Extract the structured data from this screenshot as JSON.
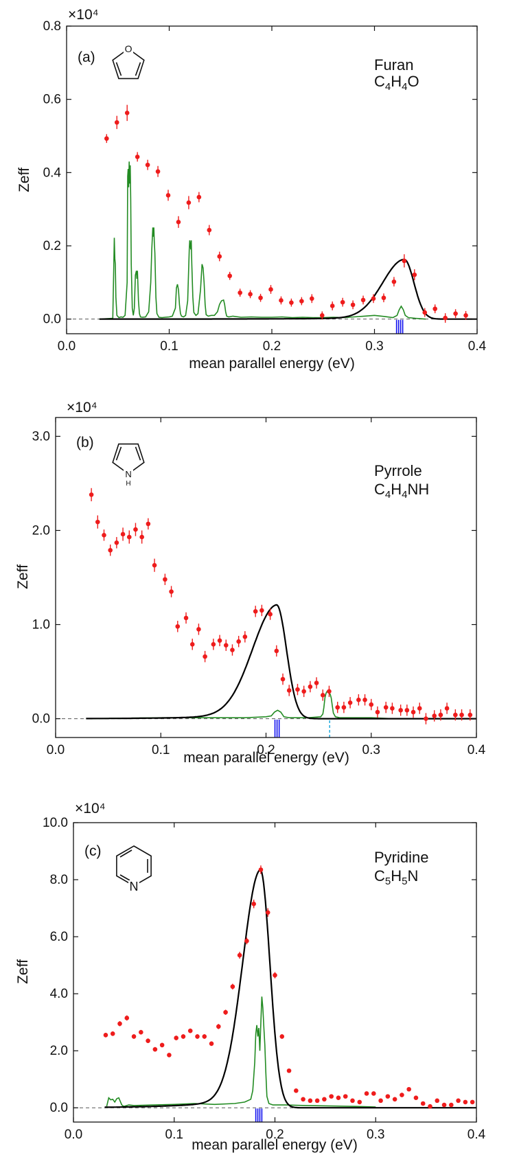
{
  "colors": {
    "data_points": "#ee1c1c",
    "fit_curve": "#000000",
    "calc_curve": "#228b22",
    "vib_mode_lines": "#1010ee",
    "dashed_mode_line": "#22aadd",
    "baseline": "#555555"
  },
  "chart_data": [
    {
      "type": "scatter",
      "panel_label": "(a)",
      "molecule": {
        "name": "Furan",
        "formula": [
          "C",
          "4",
          "H",
          "4",
          "O"
        ],
        "structure_icon": "furan-ring-icon",
        "heteroatom_label": "O"
      },
      "xlabel": "mean parallel energy (eV)",
      "ylabel": "Zeff",
      "y_multiplier": "×10⁴",
      "xlim": [
        0.0,
        0.4
      ],
      "ylim": [
        -0.04,
        0.8
      ],
      "xticks": [
        0.0,
        0.1,
        0.2,
        0.3,
        0.4
      ],
      "xtick_labels": [
        "0.0",
        "0.1",
        "0.2",
        "0.3",
        "0.4"
      ],
      "yticks": [
        0.0,
        0.2,
        0.4,
        0.6,
        0.8
      ],
      "ytick_labels": [
        "0.0",
        "0.2",
        "0.4",
        "0.6",
        "0.8"
      ],
      "grid": false,
      "series": [
        {
          "kind": "points",
          "x": [
            0.039,
            0.049,
            0.059,
            0.069,
            0.079,
            0.089,
            0.099,
            0.109,
            0.119,
            0.129,
            0.139,
            0.149,
            0.159,
            0.169,
            0.179,
            0.189,
            0.199,
            0.209,
            0.219,
            0.229,
            0.239,
            0.249,
            0.259,
            0.269,
            0.279,
            0.289,
            0.299,
            0.309,
            0.319,
            0.329,
            0.339,
            0.349,
            0.359,
            0.369,
            0.379,
            0.389
          ],
          "y": [
            0.493,
            0.537,
            0.563,
            0.443,
            0.421,
            0.403,
            0.338,
            0.265,
            0.318,
            0.333,
            0.243,
            0.171,
            0.118,
            0.072,
            0.068,
            0.058,
            0.081,
            0.051,
            0.045,
            0.049,
            0.056,
            0.01,
            0.036,
            0.046,
            0.039,
            0.052,
            0.056,
            0.058,
            0.102,
            0.159,
            0.121,
            0.018,
            0.028,
            0.003,
            0.015,
            0.01
          ],
          "yerr": [
            0.012,
            0.018,
            0.022,
            0.013,
            0.014,
            0.015,
            0.015,
            0.016,
            0.018,
            0.014,
            0.014,
            0.013,
            0.011,
            0.011,
            0.011,
            0.011,
            0.012,
            0.011,
            0.011,
            0.011,
            0.012,
            0.011,
            0.012,
            0.012,
            0.012,
            0.012,
            0.012,
            0.012,
            0.013,
            0.018,
            0.015,
            0.012,
            0.012,
            0.013,
            0.012,
            0.012
          ]
        },
        {
          "kind": "fit",
          "shape": "resonance",
          "x0": 0.329,
          "amplitude": 0.163,
          "sigma_left": 0.021,
          "sigma_right": 0.0095,
          "tail_fraction": 0.04,
          "tail_scale": 0.055,
          "x_start": 0.032,
          "x_end": 0.4
        },
        {
          "kind": "calc",
          "x": [
            0.032,
            0.045,
            0.046,
            0.0465,
            0.047,
            0.0475,
            0.048,
            0.049,
            0.051,
            0.053,
            0.055,
            0.057,
            0.059,
            0.0595,
            0.06,
            0.0605,
            0.061,
            0.0615,
            0.062,
            0.0625,
            0.063,
            0.064,
            0.065,
            0.066,
            0.067,
            0.068,
            0.0685,
            0.069,
            0.0695,
            0.07,
            0.071,
            0.072,
            0.074,
            0.077,
            0.08,
            0.082,
            0.083,
            0.084,
            0.0845,
            0.085,
            0.0855,
            0.086,
            0.087,
            0.088,
            0.09,
            0.093,
            0.096,
            0.1,
            0.103,
            0.106,
            0.107,
            0.108,
            0.109,
            0.11,
            0.111,
            0.112,
            0.114,
            0.116,
            0.118,
            0.1195,
            0.12,
            0.121,
            0.1215,
            0.122,
            0.123,
            0.124,
            0.126,
            0.128,
            0.1305,
            0.132,
            0.133,
            0.134,
            0.135,
            0.136,
            0.138,
            0.141,
            0.144,
            0.147,
            0.149,
            0.151,
            0.153,
            0.154,
            0.155,
            0.156,
            0.158,
            0.162,
            0.17,
            0.18,
            0.19,
            0.2,
            0.21,
            0.22,
            0.23,
            0.24,
            0.25,
            0.26,
            0.27,
            0.28,
            0.29,
            0.3,
            0.31,
            0.318,
            0.322,
            0.324,
            0.326,
            0.328,
            0.33,
            0.333,
            0.34,
            0.35
          ],
          "y": [
            0.0,
            0.002,
            0.15,
            0.222,
            0.165,
            0.15,
            0.06,
            0.01,
            0.004,
            0.006,
            0.005,
            0.01,
            0.1,
            0.39,
            0.41,
            0.36,
            0.43,
            0.37,
            0.42,
            0.33,
            0.15,
            0.03,
            0.01,
            0.03,
            0.12,
            0.132,
            0.11,
            0.132,
            0.095,
            0.05,
            0.015,
            0.006,
            0.005,
            0.006,
            0.02,
            0.1,
            0.19,
            0.25,
            0.225,
            0.25,
            0.21,
            0.18,
            0.06,
            0.015,
            0.005,
            0.004,
            0.005,
            0.006,
            0.008,
            0.03,
            0.085,
            0.095,
            0.08,
            0.04,
            0.015,
            0.008,
            0.006,
            0.01,
            0.05,
            0.19,
            0.215,
            0.19,
            0.215,
            0.15,
            0.06,
            0.018,
            0.01,
            0.015,
            0.08,
            0.15,
            0.14,
            0.1,
            0.04,
            0.012,
            0.008,
            0.01,
            0.01,
            0.02,
            0.04,
            0.05,
            0.052,
            0.04,
            0.02,
            0.008,
            0.006,
            0.008,
            0.005,
            0.006,
            0.005,
            0.005,
            0.006,
            0.004,
            0.005,
            0.004,
            0.004,
            0.005,
            0.004,
            0.006,
            0.008,
            0.01,
            0.007,
            0.004,
            0.01,
            0.025,
            0.035,
            0.026,
            0.01,
            0.004,
            0.002,
            0.0
          ]
        }
      ],
      "vib_modes": [
        0.3215,
        0.3235,
        0.3255,
        0.3275
      ],
      "dashed_modes": []
    },
    {
      "type": "scatter",
      "panel_label": "(b)",
      "molecule": {
        "name": "Pyrrole",
        "formula": [
          "C",
          "4",
          "H",
          "4",
          "NH"
        ],
        "structure_icon": "pyrrole-ring-icon",
        "heteroatom_label": "N",
        "heteroatom_sub": "H"
      },
      "xlabel": "mean parallel energy (eV)",
      "ylabel": "Zeff",
      "y_multiplier": "×10⁴",
      "xlim": [
        0.0,
        0.4
      ],
      "ylim": [
        -0.2,
        3.2
      ],
      "xticks": [
        0.0,
        0.1,
        0.2,
        0.3,
        0.4
      ],
      "xtick_labels": [
        "0.0",
        "0.1",
        "0.2",
        "0.3",
        "0.4"
      ],
      "yticks": [
        0.0,
        1.0,
        2.0,
        3.0
      ],
      "ytick_labels": [
        "0.0",
        "1.0",
        "2.0",
        "3.0"
      ],
      "grid": false,
      "series": [
        {
          "kind": "points",
          "x": [
            0.034,
            0.04,
            0.046,
            0.052,
            0.058,
            0.064,
            0.07,
            0.076,
            0.082,
            0.088,
            0.094,
            0.104,
            0.11,
            0.116,
            0.124,
            0.13,
            0.136,
            0.142,
            0.15,
            0.156,
            0.162,
            0.168,
            0.174,
            0.18,
            0.19,
            0.196,
            0.204,
            0.21,
            0.216,
            0.222,
            0.23,
            0.236,
            0.242,
            0.248,
            0.254,
            0.26,
            0.268,
            0.274,
            0.28,
            0.288,
            0.294,
            0.3,
            0.306,
            0.314,
            0.32,
            0.328,
            0.334,
            0.34,
            0.346,
            0.352,
            0.36,
            0.366,
            0.372,
            0.38,
            0.386,
            0.394
          ],
          "y": [
            2.38,
            2.09,
            1.95,
            1.79,
            1.87,
            1.96,
            1.93,
            2.01,
            1.93,
            2.07,
            1.63,
            1.48,
            1.35,
            0.98,
            1.07,
            0.79,
            0.95,
            0.66,
            0.79,
            0.83,
            0.78,
            0.73,
            0.82,
            0.87,
            1.14,
            1.15,
            1.11,
            0.72,
            0.42,
            0.3,
            0.31,
            0.29,
            0.34,
            0.38,
            0.25,
            0.29,
            0.12,
            0.12,
            0.17,
            0.2,
            0.2,
            0.15,
            0.07,
            0.12,
            0.11,
            0.09,
            0.09,
            0.07,
            0.11,
            0.0,
            0.03,
            0.04,
            0.11,
            0.04,
            0.04,
            0.04
          ],
          "yerr": [
            0.07,
            0.07,
            0.06,
            0.06,
            0.06,
            0.07,
            0.07,
            0.07,
            0.07,
            0.06,
            0.07,
            0.06,
            0.06,
            0.06,
            0.06,
            0.06,
            0.06,
            0.06,
            0.06,
            0.06,
            0.06,
            0.06,
            0.06,
            0.06,
            0.06,
            0.06,
            0.06,
            0.06,
            0.06,
            0.06,
            0.06,
            0.06,
            0.06,
            0.06,
            0.06,
            0.06,
            0.06,
            0.06,
            0.06,
            0.06,
            0.06,
            0.06,
            0.06,
            0.06,
            0.06,
            0.06,
            0.06,
            0.06,
            0.06,
            0.06,
            0.06,
            0.06,
            0.06,
            0.06,
            0.06,
            0.06
          ]
        },
        {
          "kind": "fit",
          "shape": "resonance",
          "x0": 0.21,
          "amplitude": 1.21,
          "sigma_left": 0.023,
          "sigma_right": 0.0095,
          "tail_fraction": 0.07,
          "tail_scale": 0.045,
          "x_start": 0.029,
          "x_end": 0.4
        },
        {
          "kind": "calc",
          "x": [
            0.029,
            0.1,
            0.15,
            0.18,
            0.2,
            0.205,
            0.208,
            0.211,
            0.214,
            0.217,
            0.222,
            0.24,
            0.252,
            0.254,
            0.255,
            0.256,
            0.257,
            0.258,
            0.259,
            0.26,
            0.261,
            0.262,
            0.263,
            0.264,
            0.266,
            0.27,
            0.3,
            0.32
          ],
          "y": [
            0.0,
            0.01,
            0.01,
            0.01,
            0.02,
            0.03,
            0.07,
            0.09,
            0.07,
            0.02,
            0.01,
            0.01,
            0.02,
            0.05,
            0.12,
            0.22,
            0.27,
            0.29,
            0.28,
            0.27,
            0.26,
            0.22,
            0.14,
            0.06,
            0.02,
            0.01,
            0.01,
            0.0
          ]
        }
      ],
      "vib_modes": [
        0.2085,
        0.2105,
        0.2125
      ],
      "dashed_modes": [
        0.2605
      ]
    },
    {
      "type": "scatter",
      "panel_label": "(c)",
      "molecule": {
        "name": "Pyridine",
        "formula": [
          "C",
          "5",
          "H",
          "5",
          "N"
        ],
        "structure_icon": "pyridine-ring-icon",
        "heteroatom_label": "N"
      },
      "xlabel": "mean parallel energy (eV)",
      "ylabel": "Zeff",
      "y_multiplier": "×10⁴",
      "xlim": [
        0.0,
        0.4
      ],
      "ylim": [
        -0.5,
        10.0
      ],
      "xticks": [
        0.0,
        0.1,
        0.2,
        0.3,
        0.4
      ],
      "xtick_labels": [
        "0.0",
        "0.1",
        "0.2",
        "0.3",
        "0.4"
      ],
      "yticks": [
        0.0,
        2.0,
        4.0,
        6.0,
        8.0,
        10.0
      ],
      "ytick_labels": [
        "0.0",
        "2.0",
        "4.0",
        "6.0",
        "8.0",
        "10.0"
      ],
      "grid": false,
      "series": [
        {
          "kind": "points",
          "x": [
            0.032,
            0.039,
            0.046,
            0.053,
            0.06,
            0.067,
            0.074,
            0.081,
            0.088,
            0.095,
            0.102,
            0.109,
            0.116,
            0.123,
            0.13,
            0.137,
            0.144,
            0.151,
            0.158,
            0.165,
            0.172,
            0.179,
            0.186,
            0.193,
            0.2,
            0.207,
            0.214,
            0.221,
            0.228,
            0.235,
            0.242,
            0.249,
            0.256,
            0.263,
            0.27,
            0.277,
            0.284,
            0.291,
            0.298,
            0.305,
            0.312,
            0.319,
            0.326,
            0.333,
            0.34,
            0.347,
            0.354,
            0.361,
            0.368,
            0.375,
            0.382,
            0.389,
            0.396
          ],
          "y": [
            2.55,
            2.6,
            2.95,
            3.15,
            2.5,
            2.65,
            2.35,
            2.05,
            2.2,
            1.85,
            2.45,
            2.5,
            2.7,
            2.5,
            2.5,
            2.25,
            2.85,
            3.35,
            4.25,
            5.35,
            5.85,
            7.15,
            8.35,
            6.85,
            4.65,
            2.5,
            1.3,
            0.6,
            0.3,
            0.25,
            0.25,
            0.3,
            0.4,
            0.35,
            0.4,
            0.25,
            0.2,
            0.5,
            0.5,
            0.25,
            0.4,
            0.3,
            0.45,
            0.65,
            0.35,
            0.15,
            0.05,
            0.25,
            0.1,
            0.1,
            0.25,
            0.2,
            0.2
          ],
          "yerr": [
            0.08,
            0.08,
            0.09,
            0.09,
            0.08,
            0.08,
            0.08,
            0.08,
            0.08,
            0.07,
            0.08,
            0.08,
            0.08,
            0.08,
            0.08,
            0.08,
            0.09,
            0.09,
            0.1,
            0.12,
            0.12,
            0.15,
            0.15,
            0.15,
            0.11,
            0.08,
            0.07,
            0.07,
            0.07,
            0.07,
            0.07,
            0.07,
            0.07,
            0.07,
            0.07,
            0.07,
            0.07,
            0.07,
            0.07,
            0.07,
            0.07,
            0.07,
            0.07,
            0.07,
            0.07,
            0.07,
            0.07,
            0.07,
            0.07,
            0.07,
            0.07,
            0.07,
            0.07
          ]
        },
        {
          "kind": "fit",
          "shape": "resonance",
          "x0": 0.1855,
          "amplitude": 8.35,
          "sigma_left": 0.0175,
          "sigma_right": 0.0095,
          "tail_fraction": 0.05,
          "tail_scale": 0.05,
          "x_start": 0.031,
          "x_end": 0.4
        },
        {
          "kind": "calc",
          "x": [
            0.033,
            0.035,
            0.037,
            0.039,
            0.041,
            0.043,
            0.045,
            0.048,
            0.05,
            0.055,
            0.06,
            0.08,
            0.1,
            0.12,
            0.14,
            0.16,
            0.17,
            0.176,
            0.178,
            0.18,
            0.181,
            0.182,
            0.183,
            0.184,
            0.185,
            0.186,
            0.187,
            0.188,
            0.189,
            0.19,
            0.191,
            0.192,
            0.194,
            0.198,
            0.21,
            0.23,
            0.26,
            0.28,
            0.3
          ],
          "y": [
            0.05,
            0.35,
            0.28,
            0.3,
            0.2,
            0.32,
            0.35,
            0.1,
            0.05,
            0.1,
            0.08,
            0.1,
            0.12,
            0.15,
            0.12,
            0.15,
            0.2,
            0.3,
            0.6,
            1.6,
            2.6,
            2.9,
            2.5,
            2.8,
            2.0,
            3.0,
            3.9,
            3.5,
            2.8,
            2.2,
            1.2,
            0.4,
            0.15,
            0.1,
            0.1,
            0.08,
            0.06,
            0.05,
            0.03
          ]
        }
      ],
      "vib_modes": [
        0.181,
        0.183,
        0.185,
        0.187
      ],
      "dashed_modes": []
    }
  ]
}
